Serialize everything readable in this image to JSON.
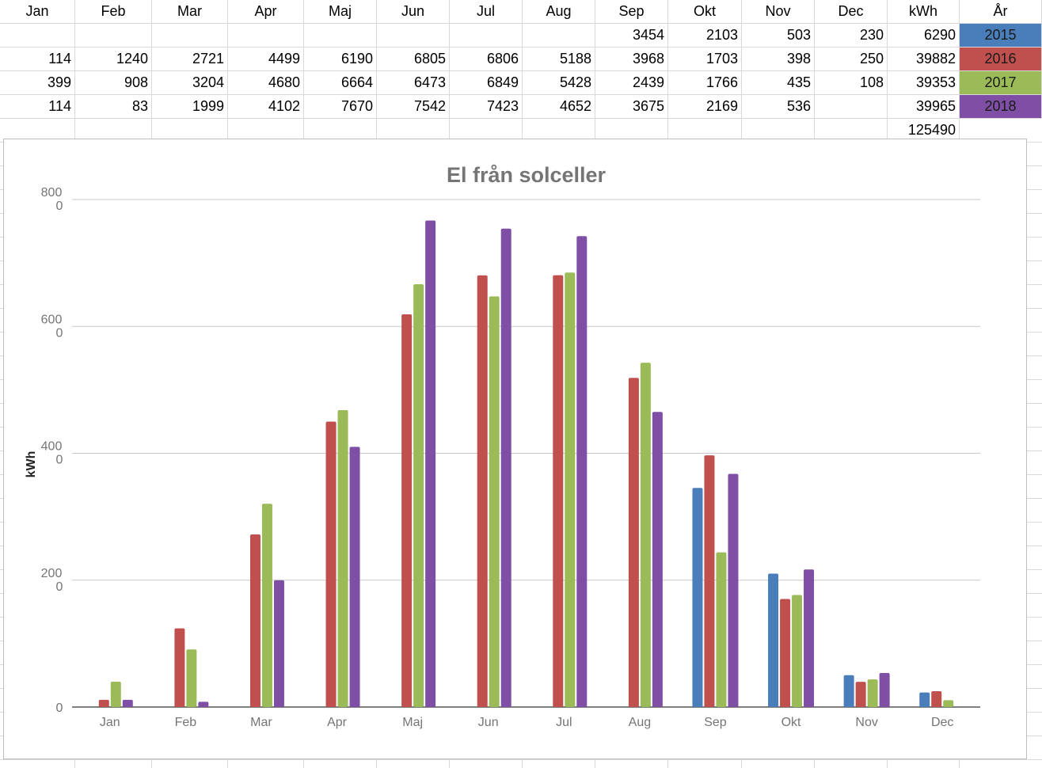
{
  "sheet": {
    "headers": [
      "Jan",
      "Feb",
      "Mar",
      "Apr",
      "Maj",
      "Jun",
      "Jul",
      "Aug",
      "Sep",
      "Okt",
      "Nov",
      "Dec",
      "kWh",
      "År"
    ],
    "rows": [
      {
        "values": [
          "",
          "",
          "",
          "",
          "",
          "",
          "",
          "",
          "3454",
          "2103",
          "503",
          "230"
        ],
        "total": "6290",
        "year": "2015",
        "color": "#4a7ebb"
      },
      {
        "values": [
          "114",
          "1240",
          "2721",
          "4499",
          "6190",
          "6805",
          "6806",
          "5188",
          "3968",
          "1703",
          "398",
          "250"
        ],
        "total": "39882",
        "year": "2016",
        "color": "#c0504d"
      },
      {
        "values": [
          "399",
          "908",
          "3204",
          "4680",
          "6664",
          "6473",
          "6849",
          "5428",
          "2439",
          "1766",
          "435",
          "108"
        ],
        "total": "39353",
        "year": "2017",
        "color": "#9bbb59"
      },
      {
        "values": [
          "114",
          "83",
          "1999",
          "4102",
          "7670",
          "7542",
          "7423",
          "4652",
          "3675",
          "2169",
          "536",
          ""
        ],
        "total": "39965",
        "year": "2018",
        "color": "#7f4fa5"
      }
    ],
    "grand_total": "125490"
  },
  "chart_data": {
    "type": "bar",
    "title": "El från solceller",
    "ylabel": "kWh",
    "xlabel": "",
    "ylim": [
      0,
      8000
    ],
    "yticks": [
      {
        "value": 0,
        "label": "0"
      },
      {
        "value": 2000,
        "label": "200\n0"
      },
      {
        "value": 4000,
        "label": "400\n0"
      },
      {
        "value": 6000,
        "label": "600\n0"
      },
      {
        "value": 8000,
        "label": "800\n0"
      }
    ],
    "grid": true,
    "legend": "none",
    "categories": [
      "Jan",
      "Feb",
      "Mar",
      "Apr",
      "Maj",
      "Jun",
      "Jul",
      "Aug",
      "Sep",
      "Okt",
      "Nov",
      "Dec"
    ],
    "series": [
      {
        "name": "2015",
        "color": "#4a7ebb",
        "values": [
          null,
          null,
          null,
          null,
          null,
          null,
          null,
          null,
          3454,
          2103,
          503,
          230
        ]
      },
      {
        "name": "2016",
        "color": "#c0504d",
        "values": [
          114,
          1240,
          2721,
          4499,
          6190,
          6805,
          6806,
          5188,
          3968,
          1703,
          398,
          250
        ]
      },
      {
        "name": "2017",
        "color": "#9bbb59",
        "values": [
          399,
          908,
          3204,
          4680,
          6664,
          6473,
          6849,
          5428,
          2439,
          1766,
          435,
          108
        ]
      },
      {
        "name": "2018",
        "color": "#7f4fa5",
        "values": [
          114,
          83,
          1999,
          4102,
          7670,
          7542,
          7423,
          4652,
          3675,
          2169,
          536,
          null
        ]
      }
    ]
  }
}
